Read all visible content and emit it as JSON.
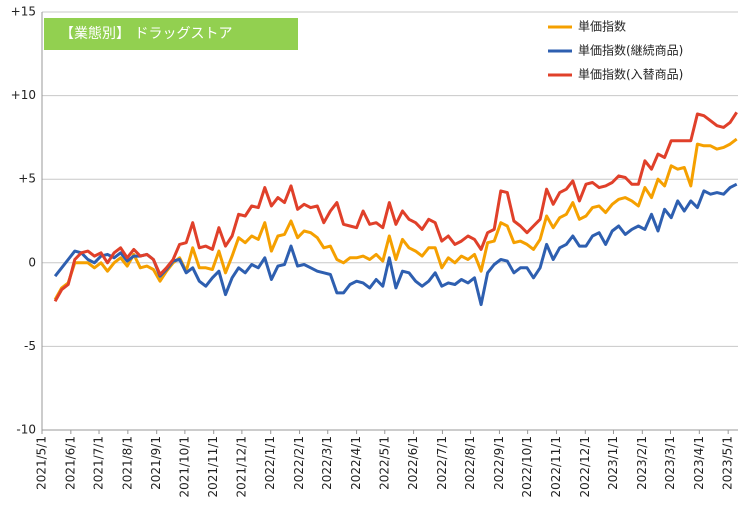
{
  "chart_data": {
    "type": "line",
    "title": "【業態別】 ドラッグストア",
    "title_bg": "#92d050",
    "legend": "top-right",
    "grid": true,
    "ylim": [
      -10,
      15
    ],
    "yticks": [
      {
        "value": 15,
        "label": "+15"
      },
      {
        "value": 10,
        "label": "+10"
      },
      {
        "value": 5,
        "label": "+5"
      },
      0,
      -5,
      -10
    ],
    "xlim": [
      -2,
      104.2
    ],
    "xticks": [
      {
        "value": -2.0,
        "label": "2021/5/1"
      },
      {
        "value": 2.4,
        "label": "2021/6/1"
      },
      {
        "value": 6.7,
        "label": "2021/7/1"
      },
      {
        "value": 11.1,
        "label": "2021/8/1"
      },
      {
        "value": 15.5,
        "label": "2021/9/1"
      },
      {
        "value": 19.8,
        "label": "2021/10/1"
      },
      {
        "value": 24.2,
        "label": "2021/11/1"
      },
      {
        "value": 28.5,
        "label": "2021/12/1"
      },
      {
        "value": 32.9,
        "label": "2022/1/1"
      },
      {
        "value": 37.3,
        "label": "2022/2/1"
      },
      {
        "value": 41.6,
        "label": "2022/3/1"
      },
      {
        "value": 46.0,
        "label": "2022/4/1"
      },
      {
        "value": 50.3,
        "label": "2022/5/1"
      },
      {
        "value": 54.7,
        "label": "2022/6/1"
      },
      {
        "value": 59.1,
        "label": "2022/7/1"
      },
      {
        "value": 63.4,
        "label": "2022/8/1"
      },
      {
        "value": 67.8,
        "label": "2022/9/1"
      },
      {
        "value": 72.1,
        "label": "2022/10/1"
      },
      {
        "value": 76.5,
        "label": "2022/11/1"
      },
      {
        "value": 80.9,
        "label": "2022/12/1"
      },
      {
        "value": 85.2,
        "label": "2023/1/1"
      },
      {
        "value": 89.6,
        "label": "2023/2/1"
      },
      {
        "value": 93.9,
        "label": "2023/3/1"
      },
      {
        "value": 98.3,
        "label": "2023/4/1"
      },
      {
        "value": 102.7,
        "label": "2023/5/1"
      }
    ],
    "series": [
      {
        "name": "単価指数",
        "color": "#f5a000",
        "values": [
          -2.2,
          -1.5,
          -1.2,
          0,
          0,
          0,
          -0.3,
          0,
          -0.5,
          0,
          0.3,
          -0.2,
          0.5,
          -0.3,
          -0.2,
          -0.4,
          -1.1,
          -0.5,
          0,
          0.3,
          -0.5,
          0.9,
          -0.3,
          -0.3,
          -0.4,
          0.7,
          -0.6,
          0.4,
          1.5,
          1.2,
          1.6,
          1.4,
          2.4,
          0.7,
          1.6,
          1.7,
          2.5,
          1.5,
          1.9,
          1.8,
          1.5,
          0.9,
          1.0,
          0.2,
          0,
          0.3,
          0.3,
          0.4,
          0.2,
          0.5,
          0.1,
          1.6,
          0.2,
          1.4,
          0.9,
          0.7,
          0.4,
          0.9,
          0.9,
          -0.3,
          0.3,
          0,
          0.4,
          0.2,
          0.5,
          -0.5,
          1.2,
          1.3,
          2.4,
          2.2,
          1.2,
          1.3,
          1.1,
          0.8,
          1.4,
          2.8,
          2.1,
          2.7,
          2.9,
          3.6,
          2.6,
          2.8,
          3.3,
          3.4,
          3.0,
          3.5,
          3.8,
          3.9,
          3.7,
          3.4,
          4.5,
          3.9,
          5.0,
          4.6,
          5.8,
          5.6,
          5.7,
          4.6,
          7.1,
          7.0,
          7.0,
          6.8,
          6.9,
          7.1,
          7.4
        ]
      },
      {
        "name": "単価指数(継続商品)",
        "color": "#2e5fb0",
        "values": [
          -0.8,
          -0.3,
          0.2,
          0.7,
          0.6,
          0.2,
          0,
          0.4,
          0.5,
          0.3,
          0.6,
          0.1,
          0.4,
          0.4,
          0.5,
          0.2,
          -0.8,
          -0.4,
          0.1,
          0.2,
          -0.6,
          -0.3,
          -1.1,
          -1.4,
          -0.9,
          -0.5,
          -1.9,
          -0.9,
          -0.3,
          -0.6,
          -0.1,
          -0.3,
          0.3,
          -1.0,
          -0.2,
          -0.1,
          1.0,
          -0.2,
          -0.1,
          -0.3,
          -0.5,
          -0.6,
          -0.7,
          -1.8,
          -1.8,
          -1.3,
          -1.1,
          -1.2,
          -1.5,
          -1.0,
          -1.4,
          0.3,
          -1.5,
          -0.5,
          -0.6,
          -1.1,
          -1.4,
          -1.1,
          -0.6,
          -1.4,
          -1.2,
          -1.3,
          -1.0,
          -1.2,
          -0.9,
          -2.5,
          -0.6,
          -0.1,
          0.2,
          0.1,
          -0.6,
          -0.3,
          -0.3,
          -0.9,
          -0.3,
          1.1,
          0.2,
          0.9,
          1.1,
          1.6,
          1.0,
          1.0,
          1.6,
          1.8,
          1.1,
          1.9,
          2.2,
          1.7,
          2.0,
          2.2,
          2.0,
          2.9,
          1.9,
          3.2,
          2.7,
          3.7,
          3.1,
          3.7,
          3.3,
          4.3,
          4.1,
          4.2,
          4.1,
          4.5,
          4.7
        ]
      },
      {
        "name": "単価指数(入替商品)",
        "color": "#e0402a",
        "values": [
          -2.3,
          -1.6,
          -1.3,
          0.2,
          0.6,
          0.7,
          0.4,
          0.6,
          0,
          0.6,
          0.9,
          0.3,
          0.8,
          0.4,
          0.5,
          0.2,
          -0.7,
          -0.3,
          0.2,
          1.1,
          1.2,
          2.4,
          0.9,
          1.0,
          0.8,
          2.1,
          1.0,
          1.6,
          2.9,
          2.8,
          3.4,
          3.3,
          4.5,
          3.4,
          3.9,
          3.6,
          4.6,
          3.2,
          3.5,
          3.3,
          3.4,
          2.4,
          3.1,
          3.6,
          2.3,
          2.2,
          2.1,
          3.1,
          2.3,
          2.4,
          2.1,
          3.6,
          2.3,
          3.1,
          2.6,
          2.4,
          2.0,
          2.6,
          2.4,
          1.3,
          1.6,
          1.1,
          1.3,
          1.6,
          1.4,
          0.8,
          1.8,
          2.0,
          4.3,
          4.2,
          2.5,
          2.2,
          1.8,
          2.2,
          2.6,
          4.4,
          3.5,
          4.2,
          4.4,
          4.9,
          3.7,
          4.7,
          4.8,
          4.5,
          4.6,
          4.8,
          5.2,
          5.1,
          4.7,
          4.7,
          6.1,
          5.6,
          6.5,
          6.3,
          7.3,
          7.3,
          7.3,
          7.3,
          8.9,
          8.8,
          8.5,
          8.2,
          8.1,
          8.4,
          9.0
        ]
      }
    ]
  }
}
